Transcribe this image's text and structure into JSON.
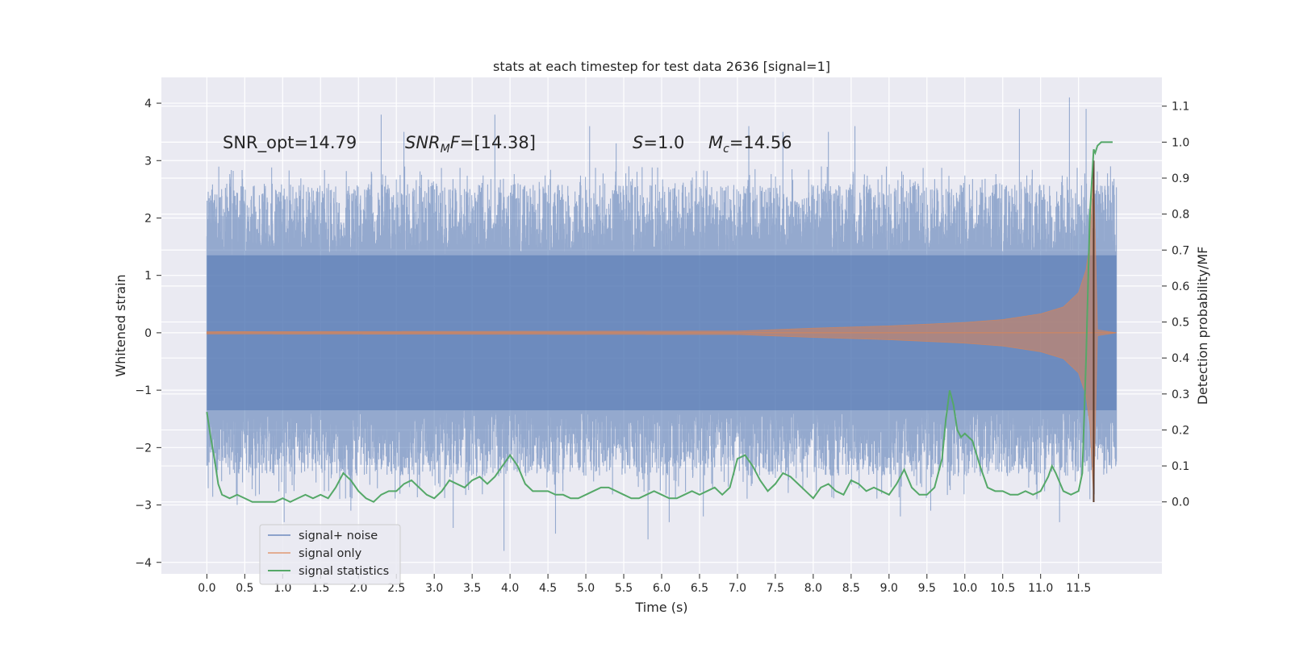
{
  "chart_data": {
    "type": "line",
    "title": "stats at each timestep for test data 2636 [signal=1]",
    "xlabel": "Time (s)",
    "ylabel": "Whitened strain",
    "ylabel_right": "Detection probability/MF",
    "xlim": [
      -0.6,
      12.6
    ],
    "ylim": [
      -4.2,
      4.45
    ],
    "ylim_right": [
      -0.2,
      1.18
    ],
    "x_ticks": [
      "0.0",
      "0.5",
      "1.0",
      "1.5",
      "2.0",
      "2.5",
      "3.0",
      "3.5",
      "4.0",
      "4.5",
      "5.0",
      "5.5",
      "6.0",
      "6.5",
      "7.0",
      "7.5",
      "8.0",
      "8.5",
      "9.0",
      "9.5",
      "10.0",
      "10.5",
      "11.0",
      "11.5"
    ],
    "y_ticks": [
      "4",
      "3",
      "2",
      "1",
      "0",
      "−1",
      "−2",
      "−3",
      "−4"
    ],
    "y_ticks_right": [
      "1.1",
      "1.0",
      "0.9",
      "0.8",
      "0.7",
      "0.6",
      "0.5",
      "0.4",
      "0.3",
      "0.2",
      "0.1",
      "0.0"
    ],
    "grid": true,
    "legend_position": "lower-left",
    "annotations": {
      "snr_opt": "SNR_opt=14.79",
      "snr_mf_label": "SNR",
      "snr_mf_sub": "M",
      "snr_mf_suffix": "F",
      "snr_mf_value": "=[14.38]",
      "s_label": "S",
      "s_value": "=1.0",
      "mc_label": "M",
      "mc_sub": "c",
      "mc_value": "=14.56"
    },
    "series": [
      {
        "name": "signal+ noise",
        "axis": "left",
        "color": "#4c72b0",
        "kind": "noise",
        "x_range": [
          0.0,
          12.0
        ],
        "typical_envelope": [
          -1.6,
          2.0
        ],
        "extremes": [
          {
            "x": 0.3,
            "y": 2.6
          },
          {
            "x": 0.4,
            "y": -3.0
          },
          {
            "x": 1.02,
            "y": -3.3
          },
          {
            "x": 1.9,
            "y": -3.1
          },
          {
            "x": 2.3,
            "y": 3.8
          },
          {
            "x": 2.6,
            "y": 3.5
          },
          {
            "x": 3.25,
            "y": -3.4
          },
          {
            "x": 3.8,
            "y": 3.8
          },
          {
            "x": 3.92,
            "y": -3.8
          },
          {
            "x": 4.6,
            "y": -3.5
          },
          {
            "x": 5.05,
            "y": 3.6
          },
          {
            "x": 5.4,
            "y": 3.3
          },
          {
            "x": 5.82,
            "y": -3.6
          },
          {
            "x": 6.1,
            "y": -3.3
          },
          {
            "x": 6.55,
            "y": -3.2
          },
          {
            "x": 7.15,
            "y": 3.6
          },
          {
            "x": 7.6,
            "y": 3.5
          },
          {
            "x": 8.2,
            "y": 3.5
          },
          {
            "x": 8.55,
            "y": 3.6
          },
          {
            "x": 9.15,
            "y": -3.2
          },
          {
            "x": 9.55,
            "y": -3.1
          },
          {
            "x": 10.72,
            "y": 3.9
          },
          {
            "x": 10.95,
            "y": -2.9
          },
          {
            "x": 11.25,
            "y": -3.3
          },
          {
            "x": 11.38,
            "y": 4.1
          },
          {
            "x": 11.6,
            "y": 3.9
          },
          {
            "x": 11.65,
            "y": -2.9
          }
        ]
      },
      {
        "name": "signal only",
        "axis": "left",
        "color": "#dd8452",
        "kind": "chirp",
        "amplitude_envelope": {
          "x": [
            0.0,
            7.0,
            8.0,
            9.0,
            10.0,
            10.5,
            11.0,
            11.3,
            11.5,
            11.6,
            11.65,
            11.7,
            11.75,
            12.0
          ],
          "amp": [
            0.02,
            0.03,
            0.08,
            0.12,
            0.18,
            0.23,
            0.33,
            0.45,
            0.7,
            1.1,
            1.6,
            2.9,
            0.05,
            0.0
          ]
        }
      },
      {
        "name": "signal statistics",
        "axis": "right",
        "color": "#55a868",
        "kind": "line",
        "x": [
          0.0,
          0.05,
          0.1,
          0.15,
          0.2,
          0.3,
          0.4,
          0.5,
          0.6,
          0.7,
          0.8,
          0.9,
          1.0,
          1.1,
          1.2,
          1.3,
          1.4,
          1.5,
          1.6,
          1.7,
          1.8,
          1.9,
          2.0,
          2.1,
          2.2,
          2.3,
          2.4,
          2.5,
          2.6,
          2.7,
          2.8,
          2.9,
          3.0,
          3.1,
          3.2,
          3.3,
          3.4,
          3.5,
          3.6,
          3.7,
          3.8,
          3.9,
          4.0,
          4.1,
          4.2,
          4.3,
          4.4,
          4.5,
          4.6,
          4.7,
          4.8,
          4.9,
          5.0,
          5.1,
          5.2,
          5.3,
          5.4,
          5.5,
          5.6,
          5.7,
          5.8,
          5.9,
          6.0,
          6.1,
          6.2,
          6.3,
          6.4,
          6.5,
          6.6,
          6.7,
          6.8,
          6.9,
          7.0,
          7.1,
          7.2,
          7.3,
          7.4,
          7.5,
          7.6,
          7.7,
          7.8,
          7.9,
          8.0,
          8.1,
          8.2,
          8.3,
          8.4,
          8.5,
          8.6,
          8.7,
          8.8,
          8.9,
          9.0,
          9.1,
          9.2,
          9.3,
          9.4,
          9.5,
          9.6,
          9.7,
          9.75,
          9.8,
          9.85,
          9.9,
          9.95,
          10.0,
          10.05,
          10.1,
          10.2,
          10.3,
          10.4,
          10.5,
          10.6,
          10.7,
          10.8,
          10.9,
          11.0,
          11.1,
          11.15,
          11.2,
          11.3,
          11.4,
          11.5,
          11.55,
          11.6,
          11.65,
          11.7,
          11.72,
          11.75,
          11.8,
          11.85,
          11.9,
          11.95
        ],
        "values": [
          0.25,
          0.18,
          0.12,
          0.05,
          0.02,
          0.01,
          0.02,
          0.01,
          0.0,
          0.0,
          0.0,
          0.0,
          0.01,
          0.0,
          0.01,
          0.02,
          0.01,
          0.02,
          0.01,
          0.04,
          0.08,
          0.06,
          0.03,
          0.01,
          0.0,
          0.02,
          0.03,
          0.03,
          0.05,
          0.06,
          0.04,
          0.02,
          0.01,
          0.03,
          0.06,
          0.05,
          0.04,
          0.06,
          0.07,
          0.05,
          0.07,
          0.1,
          0.13,
          0.1,
          0.05,
          0.03,
          0.03,
          0.03,
          0.02,
          0.02,
          0.01,
          0.01,
          0.02,
          0.03,
          0.04,
          0.04,
          0.03,
          0.02,
          0.01,
          0.01,
          0.02,
          0.03,
          0.02,
          0.01,
          0.01,
          0.02,
          0.03,
          0.02,
          0.03,
          0.04,
          0.02,
          0.04,
          0.12,
          0.13,
          0.1,
          0.06,
          0.03,
          0.05,
          0.08,
          0.07,
          0.05,
          0.03,
          0.01,
          0.04,
          0.05,
          0.03,
          0.02,
          0.06,
          0.05,
          0.03,
          0.04,
          0.03,
          0.02,
          0.05,
          0.09,
          0.04,
          0.02,
          0.02,
          0.04,
          0.12,
          0.23,
          0.31,
          0.27,
          0.2,
          0.18,
          0.19,
          0.18,
          0.17,
          0.1,
          0.04,
          0.03,
          0.03,
          0.02,
          0.02,
          0.03,
          0.02,
          0.03,
          0.07,
          0.1,
          0.08,
          0.03,
          0.02,
          0.03,
          0.08,
          0.4,
          0.8,
          0.98,
          0.97,
          0.99,
          1.0,
          1.0,
          1.0,
          1.0
        ]
      }
    ]
  }
}
